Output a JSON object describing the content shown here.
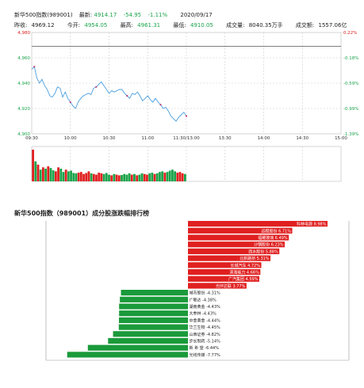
{
  "header": {
    "name": "新华500指数(989001)",
    "latest_label": "最新:",
    "latest_value": "4914.17",
    "change": "-54.95",
    "change_pct": "-1.11%",
    "date": "2020/09/17",
    "prev_close_label": "昨收:",
    "prev_close": "4969.12",
    "open_label": "今开:",
    "open": "4954.05",
    "high_label": "最高:",
    "high": "4961.31",
    "low_label": "最低:",
    "low": "4910.05",
    "volume_label": "成交量:",
    "volume": "8040.35万手",
    "amount_label": "成交额:",
    "amount": "1557.06亿"
  },
  "colors": {
    "up": "#e02020",
    "down": "#1aa34a",
    "line": "#4a9fe0",
    "refline": "#555555"
  },
  "chart_data": [
    {
      "type": "line",
      "title": "",
      "x_ticks": [
        "09:30",
        "10:00",
        "10:30",
        "11:00",
        "11:30/13:00",
        "13:30",
        "14:00",
        "14:30",
        "15:00"
      ],
      "y_left_ticks": [
        "4,980",
        "4,960",
        "4,940",
        "4,920",
        "4,900"
      ],
      "y_right_ticks": [
        "0.22%",
        "-0.18%",
        "-0.59%",
        "-0.99%",
        "-1.39%"
      ],
      "ylim": [
        4900,
        4980
      ],
      "prev_close": 4969.12,
      "series": [
        {
          "values": [
            4951,
            4953,
            4944,
            4940,
            4943,
            4938,
            4935,
            4930,
            4929,
            4932,
            4937,
            4936,
            4929,
            4933,
            4928,
            4925,
            4922,
            4920,
            4925,
            4928,
            4930,
            4931,
            4932,
            4931,
            4936,
            4937,
            4939,
            4941,
            4938,
            4935,
            4932,
            4934,
            4933,
            4934,
            4935,
            4935,
            4932,
            4930,
            4928,
            4932,
            4931,
            4933,
            4930,
            4926,
            4928,
            4930,
            4927,
            4925,
            4928,
            4925,
            4923,
            4920,
            4921,
            4918,
            4914,
            4912,
            4910,
            4913,
            4915,
            4917,
            4914
          ]
        }
      ],
      "volume": [
        95,
        60,
        50,
        35,
        42,
        38,
        45,
        40,
        33,
        30,
        42,
        38,
        28,
        35,
        30,
        32,
        25,
        24,
        26,
        28,
        22,
        25,
        30,
        24,
        22,
        20,
        26,
        24,
        22,
        25,
        20,
        18,
        22,
        20,
        18,
        19,
        22,
        20,
        24,
        20,
        22,
        18,
        20,
        24,
        22,
        20,
        24,
        26,
        22,
        24,
        28,
        30,
        26,
        28,
        32,
        35,
        30,
        26,
        28,
        24,
        22
      ],
      "volume_up": [
        1,
        0,
        1,
        0,
        1,
        0,
        1,
        0,
        0,
        1,
        1,
        0,
        0,
        1,
        0,
        0,
        0,
        0,
        1,
        1,
        1,
        1,
        1,
        0,
        1,
        1,
        1,
        1,
        0,
        0,
        0,
        1,
        0,
        1,
        1,
        0,
        0,
        0,
        0,
        1,
        0,
        1,
        0,
        0,
        1,
        1,
        0,
        0,
        1,
        0,
        0,
        0,
        1,
        0,
        0,
        0,
        0,
        1,
        1,
        1,
        0
      ]
    },
    {
      "type": "bar",
      "title": "新华500指数（989001）成分股涨跌幅排行榜",
      "categories": [
        "科林电源",
        "远程股份",
        "福耀玻璃",
        "沙钢股份",
        "西水股份",
        "北新路桥",
        "长城汽车",
        "滨海能力",
        "广汽集团",
        "光环达联",
        "城市股份",
        "广联达",
        "湖南黄金",
        "大参林",
        "中金黄金",
        "华兰生物",
        "山西证券",
        "步长制药",
        "新希望",
        "光线传媒"
      ],
      "values": [
        8.98,
        6.71,
        6.49,
        6.23,
        5.88,
        5.31,
        4.72,
        4.66,
        4.59,
        3.77,
        -4.31,
        -4.38,
        -4.43,
        -4.43,
        -4.44,
        -4.45,
        -4.82,
        -5.14,
        -6.44,
        -7.77
      ],
      "labels": [
        "科林电源 8.98%",
        "远程股份 6.71%",
        "福耀玻璃 6.49%",
        "沙钢股份 6.23%",
        "西水股份 5.88%",
        "北新路桥 5.31%",
        "长城汽车 4.72%",
        "滨海能力 4.66%",
        "广汽集团 4.59%",
        "光环达联 3.77%",
        "城市股份 -4.31%",
        "广联达 -4.38%",
        "湖南黄金 -4.43%",
        "大参林 -4.43%",
        "中金黄金 -4.44%",
        "华兰生物 -4.45%",
        "山西证券 -4.82%",
        "步长制药 -5.14%",
        "新 希 望 -6.44%",
        "光线传媒 -7.77%"
      ]
    }
  ]
}
